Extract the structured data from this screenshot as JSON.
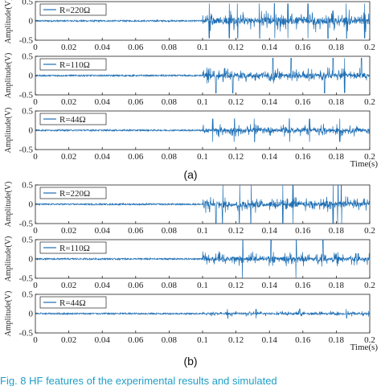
{
  "chart_data": [
    {
      "type": "line",
      "panel_label": "(a)",
      "xlim": [
        0,
        0.2
      ],
      "xticks": [
        "0",
        "0.02",
        "0.04",
        "0.06",
        "0.08",
        "0.1",
        "0.12",
        "0.14",
        "0.16",
        "0.18",
        "0.2"
      ],
      "xlabel": "Time(s)",
      "series_color": "#1f6fb4",
      "subplots": [
        {
          "legend": "R=220Ω",
          "ylabel": "Amplitude(V)",
          "ylim": [
            -0.5,
            0.5
          ],
          "yticks": [
            "0.5",
            "0",
            "-0.5"
          ],
          "baseline_amplitude": 0.02,
          "burst_start": 0.1,
          "burst_amplitude": 0.3,
          "peak_amplitude": 0.45,
          "spike_times": [
            0.104,
            0.116,
            0.121,
            0.134,
            0.143,
            0.151,
            0.163,
            0.175,
            0.186,
            0.197
          ]
        },
        {
          "legend": "R=110Ω",
          "ylabel": "Amplitude(V)",
          "ylim": [
            -0.5,
            0.5
          ],
          "yticks": [
            "0.5",
            "0",
            "-0.5"
          ],
          "baseline_amplitude": 0.02,
          "burst_start": 0.1,
          "burst_amplitude": 0.22,
          "peak_amplitude": 0.45,
          "spike_times": [
            0.108,
            0.118,
            0.142,
            0.153,
            0.173,
            0.178,
            0.185,
            0.195
          ]
        },
        {
          "legend": "R=44Ω",
          "ylabel": "Amplitude(V)",
          "ylim": [
            -0.5,
            0.5
          ],
          "yticks": [
            "0.5",
            "0",
            "-0.5"
          ],
          "baseline_amplitude": 0.02,
          "burst_start": 0.1,
          "burst_amplitude": 0.18,
          "peak_amplitude": 0.3,
          "spike_times": [
            0.106,
            0.119,
            0.131,
            0.152,
            0.164,
            0.182
          ]
        }
      ]
    },
    {
      "type": "line",
      "panel_label": "(b)",
      "xlim": [
        0,
        0.2
      ],
      "xticks": [
        "0",
        "0.02",
        "0.04",
        "0.06",
        "0.08",
        "0.1",
        "0.12",
        "0.14",
        "0.16",
        "0.18",
        "0.2"
      ],
      "xlabel": "Time(s)",
      "series_color": "#1f6fb4",
      "subplots": [
        {
          "legend": "R=220Ω",
          "ylabel": "Amplitude(V)",
          "ylim": [
            -0.5,
            0.5
          ],
          "yticks": [
            "0.5",
            "0",
            "-0.5"
          ],
          "baseline_amplitude": 0.02,
          "burst_start": 0.1,
          "burst_amplitude": 0.25,
          "peak_amplitude": 0.5,
          "spike_times": [
            0.108,
            0.112,
            0.122,
            0.129,
            0.148,
            0.154,
            0.178,
            0.181,
            0.183
          ]
        },
        {
          "legend": "R=110Ω",
          "ylabel": "Amplitude(V)",
          "ylim": [
            -0.5,
            0.5
          ],
          "yticks": [
            "0.5",
            "0",
            "-0.5"
          ],
          "baseline_amplitude": 0.02,
          "burst_start": 0.1,
          "burst_amplitude": 0.2,
          "peak_amplitude": 0.5,
          "spike_times": [
            0.124,
            0.141,
            0.156,
            0.172
          ]
        },
        {
          "legend": "R=44Ω",
          "ylabel": "Amplitude(V)",
          "ylim": [
            -0.5,
            0.5
          ],
          "yticks": [
            "0.5",
            "0",
            "-0.5"
          ],
          "baseline_amplitude": 0.02,
          "burst_start": 0.1,
          "burst_amplitude": 0.08,
          "peak_amplitude": 0.12,
          "spike_times": [
            0.115,
            0.132,
            0.158,
            0.186
          ]
        }
      ]
    }
  ],
  "caption": "Fig. 8    HF features of the experimental results and simulated"
}
